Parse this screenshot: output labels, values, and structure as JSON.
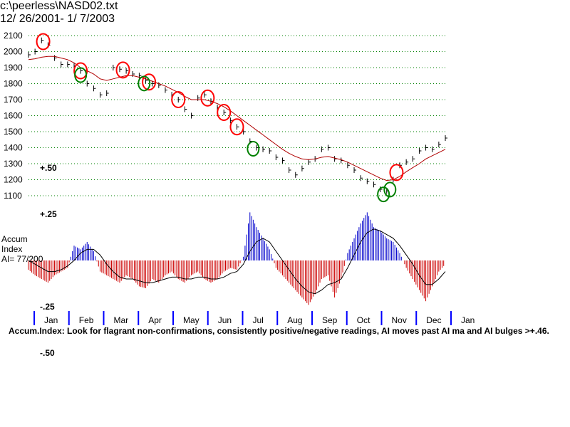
{
  "header": {
    "file": "c:\\peerless\\NASD02.txt",
    "range": "12/ 26/2001- 1/ 7/2003"
  },
  "indicator": {
    "name_line1": "Accum",
    "name_line2": "Index",
    "name_line3": "AI= 77/200"
  },
  "footnote": "Accum.Index: Look for flagrant non-confirmations, consistently positive/negative readings, AI moves past AI ma and AI bulges >+.46.",
  "colors": {
    "price": "#000000",
    "moving_average": "#b00000",
    "grid": "#008000",
    "positive_bar": "#0000cc",
    "negative_bar": "#cc0000",
    "sell_circle": "#ff0000",
    "buy_circle": "#008000",
    "month_tick": "#0000ff"
  },
  "chart_data": [
    {
      "type": "line",
      "x_axis": "trading days",
      "yticks": [
        1100,
        1200,
        1300,
        1400,
        1500,
        1600,
        1700,
        1800,
        1900,
        2000,
        2100
      ],
      "ylim": [
        1100,
        2100
      ],
      "grid": true,
      "series": [
        {
          "x": [
            0,
            4,
            8,
            12,
            16,
            20,
            24,
            28,
            32,
            36,
            40,
            44,
            48,
            52,
            56,
            60,
            64,
            68,
            72,
            76,
            80,
            84,
            88,
            92,
            96,
            100,
            104,
            108,
            112,
            116,
            120,
            124,
            128,
            132,
            136,
            140,
            144,
            148,
            152,
            156,
            160,
            164,
            168,
            172,
            176,
            180,
            184,
            188,
            192,
            196,
            200,
            204,
            208,
            212,
            216,
            220,
            224,
            228,
            232,
            236,
            240,
            244,
            248,
            252,
            256
          ],
          "y": [
            1980,
            2000,
            2070,
            2040,
            1960,
            1920,
            1920,
            1910,
            1880,
            1800,
            1770,
            1730,
            1740,
            1900,
            1890,
            1880,
            1860,
            1850,
            1820,
            1800,
            1790,
            1760,
            1730,
            1700,
            1640,
            1600,
            1710,
            1730,
            1690,
            1650,
            1620,
            1570,
            1530,
            1500,
            1440,
            1400,
            1390,
            1380,
            1340,
            1320,
            1260,
            1230,
            1270,
            1310,
            1330,
            1390,
            1400,
            1330,
            1320,
            1290,
            1260,
            1210,
            1190,
            1170,
            1140,
            1130,
            1200,
            1290,
            1310,
            1330,
            1380,
            1400,
            1390,
            1420,
            1460
          ]
        },
        {
          "x": [
            0,
            4,
            8,
            12,
            16,
            20,
            24,
            28,
            32,
            36,
            40,
            44,
            48,
            52,
            56,
            60,
            64,
            68,
            72,
            76,
            80,
            84,
            88,
            92,
            96,
            100,
            104,
            108,
            112,
            116,
            120,
            124,
            128,
            132,
            136,
            140,
            144,
            148,
            152,
            156,
            160,
            164,
            168,
            172,
            176,
            180,
            184,
            188,
            192,
            196,
            200,
            204,
            208,
            212,
            216,
            220,
            224,
            228,
            232,
            236,
            240,
            244,
            248,
            252,
            256
          ],
          "y": [
            1950,
            1955,
            1965,
            1970,
            1970,
            1960,
            1950,
            1930,
            1900,
            1880,
            1860,
            1830,
            1820,
            1830,
            1840,
            1850,
            1850,
            1840,
            1830,
            1815,
            1800,
            1785,
            1765,
            1745,
            1720,
            1700,
            1700,
            1700,
            1690,
            1675,
            1655,
            1630,
            1600,
            1570,
            1540,
            1510,
            1480,
            1450,
            1420,
            1390,
            1365,
            1345,
            1330,
            1325,
            1330,
            1340,
            1345,
            1335,
            1325,
            1310,
            1290,
            1270,
            1250,
            1230,
            1210,
            1195,
            1200,
            1220,
            1250,
            1275,
            1300,
            1330,
            1350,
            1370,
            1390
          ]
        }
      ]
    },
    {
      "type": "bar",
      "title": "",
      "yticks": [
        -0.5,
        -0.25,
        0.25,
        0.5
      ],
      "ytick_labels": [
        "-.50",
        "-.25",
        "+.25",
        "+.50"
      ],
      "ylim": [
        -0.55,
        0.55
      ],
      "months": [
        "Jan",
        "Feb",
        "Mar",
        "Apr",
        "May",
        "Jun",
        "Jul",
        "Aug",
        "Sep",
        "Oct",
        "Nov",
        "Dec",
        "Jan"
      ],
      "series": [
        {
          "x": [
            0,
            4,
            8,
            12,
            16,
            20,
            24,
            28,
            32,
            36,
            40,
            44,
            48,
            52,
            56,
            60,
            64,
            68,
            72,
            76,
            80,
            84,
            88,
            92,
            96,
            100,
            104,
            108,
            112,
            116,
            120,
            124,
            128,
            132,
            136,
            140,
            144,
            148,
            152,
            156,
            160,
            164,
            168,
            172,
            176,
            180,
            184,
            188,
            192,
            196,
            200,
            204,
            208,
            212,
            216,
            220,
            224,
            228,
            232,
            236,
            240,
            244,
            248,
            252,
            256
          ],
          "values": [
            -0.05,
            -0.08,
            -0.1,
            -0.12,
            -0.08,
            -0.06,
            -0.04,
            0.08,
            0.06,
            0.1,
            0.05,
            -0.06,
            -0.08,
            -0.1,
            -0.12,
            -0.08,
            -0.1,
            -0.14,
            -0.15,
            -0.1,
            -0.12,
            -0.08,
            -0.06,
            -0.1,
            -0.12,
            -0.08,
            -0.06,
            -0.1,
            -0.12,
            -0.1,
            -0.06,
            -0.04,
            -0.05,
            0.02,
            0.26,
            0.18,
            0.12,
            0.06,
            -0.04,
            -0.08,
            -0.12,
            -0.16,
            -0.2,
            -0.24,
            -0.18,
            -0.1,
            -0.08,
            -0.2,
            -0.1,
            0.04,
            0.12,
            0.2,
            0.26,
            0.18,
            0.16,
            0.12,
            0.1,
            0.04,
            -0.04,
            -0.1,
            -0.16,
            -0.22,
            -0.14,
            -0.06,
            -0.02
          ]
        },
        {
          "x": [
            0,
            4,
            8,
            12,
            16,
            20,
            24,
            28,
            32,
            36,
            40,
            44,
            48,
            52,
            56,
            60,
            64,
            68,
            72,
            76,
            80,
            84,
            88,
            92,
            96,
            100,
            104,
            108,
            112,
            116,
            120,
            124,
            128,
            132,
            136,
            140,
            144,
            148,
            152,
            156,
            160,
            164,
            168,
            172,
            176,
            180,
            184,
            188,
            192,
            196,
            200,
            204,
            208,
            212,
            216,
            220,
            224,
            228,
            232,
            236,
            240,
            244,
            248,
            252,
            256
          ],
          "values": [
            0.0,
            -0.02,
            -0.04,
            -0.06,
            -0.06,
            -0.05,
            -0.03,
            0.0,
            0.04,
            0.06,
            0.06,
            0.03,
            -0.02,
            -0.06,
            -0.09,
            -0.1,
            -0.1,
            -0.11,
            -0.12,
            -0.12,
            -0.11,
            -0.1,
            -0.09,
            -0.09,
            -0.1,
            -0.1,
            -0.09,
            -0.09,
            -0.1,
            -0.1,
            -0.09,
            -0.07,
            -0.06,
            -0.02,
            0.05,
            0.1,
            0.12,
            0.1,
            0.05,
            0.0,
            -0.05,
            -0.1,
            -0.14,
            -0.17,
            -0.18,
            -0.16,
            -0.13,
            -0.12,
            -0.1,
            -0.04,
            0.03,
            0.1,
            0.15,
            0.17,
            0.16,
            0.14,
            0.12,
            0.08,
            0.03,
            -0.02,
            -0.08,
            -0.13,
            -0.13,
            -0.1,
            -0.06
          ]
        }
      ]
    }
  ],
  "signals": {
    "sell_x": [
      9,
      32,
      58,
      74,
      92,
      110,
      120,
      128,
      226
    ],
    "buy_x": [
      32,
      71,
      138,
      218,
      222
    ]
  }
}
